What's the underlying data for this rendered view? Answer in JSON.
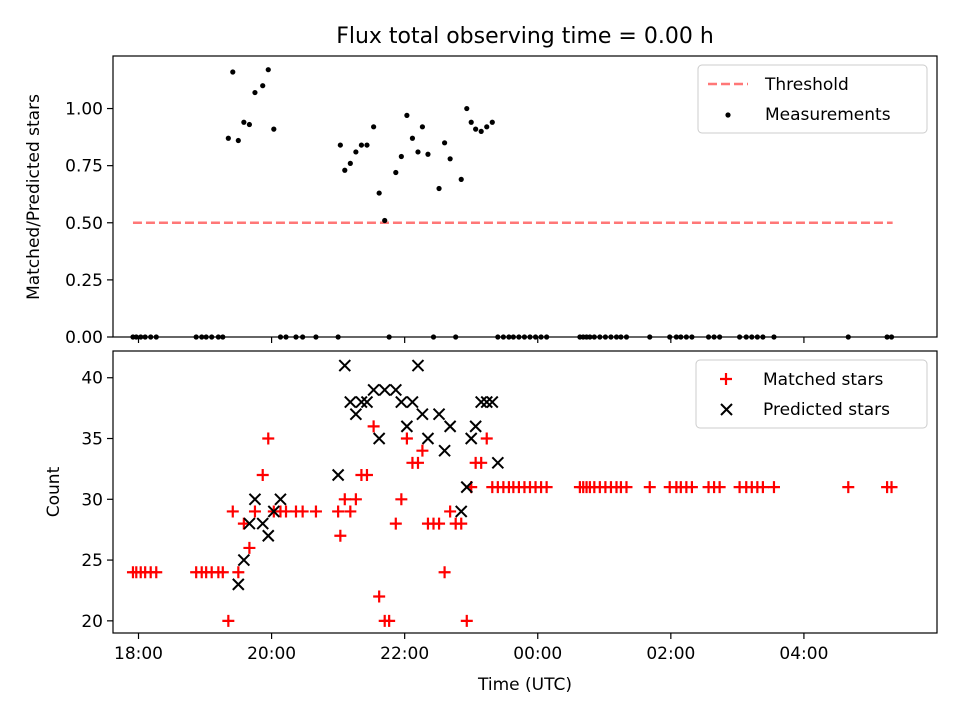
{
  "figure_title": "Flux total observing time = 0.00 h",
  "colors": {
    "threshold": "#ff7777",
    "measurement": "#000000",
    "matched": "#ff0000",
    "predicted": "#000000"
  },
  "chart_data": [
    {
      "type": "scatter",
      "title": "Flux total observing time = 0.00 h",
      "xlabel": "",
      "ylabel": "Matched/Predicted stars",
      "xlim": [
        "17:37",
        "06:00"
      ],
      "ylim": [
        0,
        1.23
      ],
      "yticks": [
        0.0,
        0.25,
        0.5,
        0.75,
        1.0
      ],
      "ytick_labels": [
        "0.00",
        "0.25",
        "0.50",
        "0.75",
        "1.00"
      ],
      "grid": false,
      "legend_position": "upper right",
      "series": [
        {
          "name": "Threshold",
          "kind": "dashed-line",
          "x": [
            "17:55",
            "05:20"
          ],
          "y": [
            0.5,
            0.5
          ]
        },
        {
          "name": "Measurements",
          "kind": "dot",
          "x": [
            "17:55",
            "17:58",
            "18:02",
            "18:06",
            "18:11",
            "18:16",
            "18:52",
            "18:57",
            "19:01",
            "19:06",
            "19:12",
            "19:16",
            "19:21",
            "19:25",
            "19:30",
            "19:35",
            "19:40",
            "19:45",
            "19:52",
            "19:57",
            "20:02",
            "20:08",
            "20:13",
            "20:22",
            "20:28",
            "20:40",
            "21:00",
            "21:02",
            "21:06",
            "21:11",
            "21:16",
            "21:21",
            "21:26",
            "21:32",
            "21:37",
            "21:42",
            "21:46",
            "21:52",
            "21:57",
            "22:02",
            "22:07",
            "22:12",
            "22:16",
            "22:21",
            "22:26",
            "22:31",
            "22:36",
            "22:41",
            "22:46",
            "22:51",
            "22:56",
            "23:00",
            "23:04",
            "23:09",
            "23:14",
            "23:19",
            "23:24",
            "23:29",
            "23:34",
            "23:38",
            "23:43",
            "23:48",
            "23:53",
            "23:58",
            "00:03",
            "00:08",
            "00:38",
            "00:41",
            "00:44",
            "00:47",
            "00:51",
            "00:56",
            "01:01",
            "01:06",
            "01:11",
            "01:15",
            "01:20",
            "01:41",
            "01:59",
            "02:05",
            "02:09",
            "02:14",
            "02:19",
            "02:34",
            "02:39",
            "02:44",
            "03:02",
            "03:08",
            "03:13",
            "03:18",
            "03:23",
            "03:33",
            "04:40",
            "05:15",
            "05:19"
          ],
          "y": [
            0,
            0,
            0,
            0,
            0,
            0,
            0,
            0,
            0,
            0,
            0,
            0,
            0.87,
            1.16,
            0.86,
            0.94,
            0.93,
            1.07,
            1.1,
            1.17,
            0.91,
            0,
            0,
            0,
            0,
            0,
            0,
            0.84,
            0.73,
            0.76,
            0.81,
            0.84,
            0.84,
            0.92,
            0.63,
            0.51,
            0,
            0.72,
            0.79,
            0.97,
            0.87,
            0.81,
            0.92,
            0.8,
            0,
            0.65,
            0.85,
            0.78,
            0,
            0.69,
            1.0,
            0.94,
            0.91,
            0.9,
            0.92,
            0.94,
            0,
            0,
            0,
            0,
            0,
            0,
            0,
            0,
            0,
            0,
            0,
            0,
            0,
            0,
            0,
            0,
            0,
            0,
            0,
            0,
            0,
            0,
            0,
            0,
            0,
            0,
            0,
            0,
            0,
            0,
            0,
            0,
            0,
            0,
            0,
            0,
            0,
            0,
            0
          ]
        }
      ]
    },
    {
      "type": "scatter",
      "title": "",
      "xlabel": "Time (UTC)",
      "ylabel": "Count",
      "xlim": [
        "17:37",
        "06:00"
      ],
      "ylim": [
        19,
        42.2
      ],
      "yticks": [
        20,
        25,
        30,
        35,
        40
      ],
      "xtick_labels": [
        "18:00",
        "20:00",
        "22:00",
        "00:00",
        "02:00",
        "04:00"
      ],
      "grid": false,
      "legend_position": "upper right",
      "series": [
        {
          "name": "Matched stars",
          "kind": "plus",
          "x": [
            "17:55",
            "17:58",
            "18:02",
            "18:06",
            "18:11",
            "18:16",
            "18:52",
            "18:57",
            "19:01",
            "19:06",
            "19:12",
            "19:16",
            "19:21",
            "19:25",
            "19:30",
            "19:35",
            "19:40",
            "19:45",
            "19:52",
            "19:57",
            "20:02",
            "20:08",
            "20:13",
            "20:22",
            "20:28",
            "20:40",
            "21:00",
            "21:02",
            "21:06",
            "21:11",
            "21:16",
            "21:21",
            "21:26",
            "21:32",
            "21:37",
            "21:42",
            "21:46",
            "21:52",
            "21:57",
            "22:02",
            "22:07",
            "22:12",
            "22:16",
            "22:21",
            "22:26",
            "22:31",
            "22:36",
            "22:41",
            "22:46",
            "22:51",
            "22:56",
            "23:00",
            "23:04",
            "23:09",
            "23:14",
            "23:19",
            "23:24",
            "23:29",
            "23:34",
            "23:38",
            "23:43",
            "23:48",
            "23:53",
            "23:58",
            "00:03",
            "00:08",
            "00:38",
            "00:41",
            "00:44",
            "00:47",
            "00:51",
            "00:56",
            "01:01",
            "01:06",
            "01:11",
            "01:15",
            "01:20",
            "01:41",
            "01:59",
            "02:05",
            "02:09",
            "02:14",
            "02:19",
            "02:34",
            "02:39",
            "02:44",
            "03:02",
            "03:08",
            "03:13",
            "03:18",
            "03:23",
            "03:33",
            "04:40",
            "05:15",
            "05:19"
          ],
          "y": [
            24,
            24,
            24,
            24,
            24,
            24,
            24,
            24,
            24,
            24,
            24,
            24,
            20,
            29,
            24,
            28,
            26,
            29,
            32,
            35,
            29,
            29,
            29,
            29,
            29,
            29,
            29,
            27,
            30,
            29,
            30,
            32,
            32,
            36,
            22,
            20,
            20,
            28,
            30,
            35,
            33,
            33,
            34,
            28,
            28,
            28,
            24,
            29,
            28,
            28,
            20,
            31,
            33,
            33,
            35,
            31,
            31,
            31,
            31,
            31,
            31,
            31,
            31,
            31,
            31,
            31,
            31,
            31,
            31,
            31,
            31,
            31,
            31,
            31,
            31,
            31,
            31,
            31,
            31,
            31,
            31,
            31,
            31,
            31,
            31,
            31,
            31,
            31,
            31,
            31,
            31,
            31,
            31,
            31,
            31
          ]
        },
        {
          "name": "Predicted stars",
          "kind": "x",
          "x": [
            "19:30",
            "19:35",
            "19:40",
            "19:45",
            "19:52",
            "19:57",
            "20:02",
            "20:08",
            "21:00",
            "21:06",
            "21:11",
            "21:16",
            "21:21",
            "21:26",
            "21:32",
            "21:37",
            "21:42",
            "21:52",
            "21:57",
            "22:02",
            "22:07",
            "22:12",
            "22:16",
            "22:21",
            "22:31",
            "22:36",
            "22:41",
            "22:51",
            "22:56",
            "23:00",
            "23:04",
            "23:09",
            "23:14",
            "23:19",
            "23:24"
          ],
          "y": [
            23,
            25,
            28,
            30,
            28,
            27,
            29,
            30,
            32,
            41,
            38,
            37,
            38,
            38,
            39,
            35,
            39,
            39,
            38,
            36,
            38,
            41,
            37,
            35,
            37,
            34,
            36,
            29,
            31,
            35,
            36,
            38,
            38,
            38,
            33
          ]
        }
      ]
    }
  ]
}
